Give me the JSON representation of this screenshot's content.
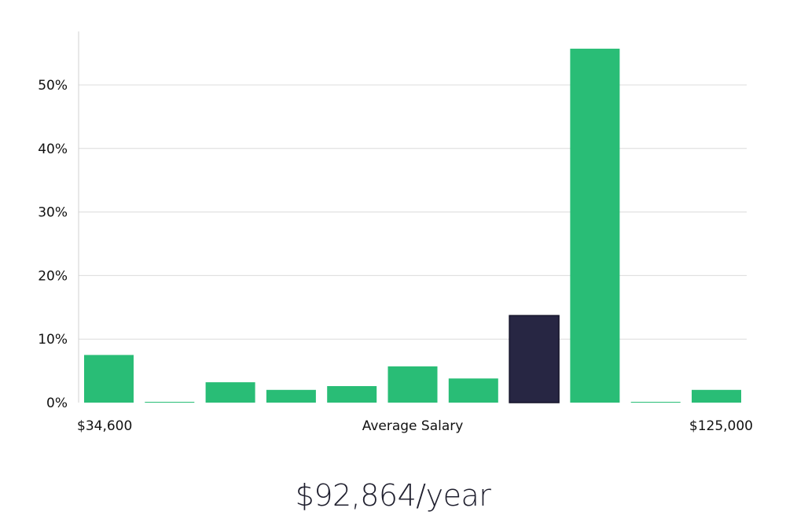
{
  "chart_data": {
    "type": "bar",
    "categories": [
      "1",
      "2",
      "3",
      "4",
      "5",
      "6",
      "7",
      "8",
      "9",
      "10",
      "11"
    ],
    "values": [
      7.5,
      0.1,
      3.2,
      2.0,
      2.6,
      5.7,
      3.8,
      13.7,
      55.7,
      0.1,
      2.0
    ],
    "highlight_index": 7,
    "ylim": [
      0,
      58
    ],
    "yticks": [
      0,
      10,
      20,
      30,
      40,
      50
    ],
    "ytick_labels": [
      "0%",
      "10%",
      "20%",
      "30%",
      "40%",
      "50%"
    ],
    "xlabel_left": "$34,600",
    "xlabel": "Average Salary",
    "xlabel_right": "$125,000",
    "grid": true,
    "colors": {
      "bar": "#29bd76",
      "highlight": "#272643",
      "grid": "#dcdcdc",
      "axis": "#d0d0d0"
    }
  },
  "headline": "$92,864/year"
}
